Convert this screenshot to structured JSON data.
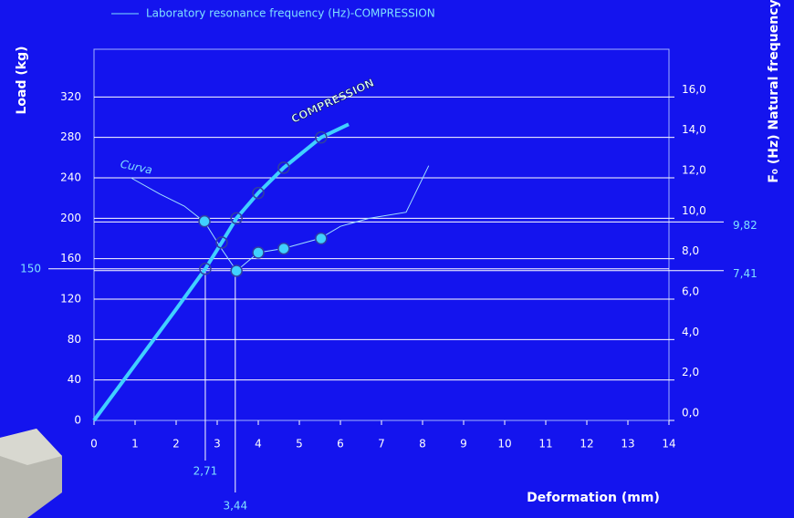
{
  "chart_data": {
    "type": "line",
    "x_label": "Deformation (mm)",
    "y_label": "Load (kg)",
    "y2_label": "F₀ (Hz) Natural frequency",
    "annotations": [
      "Curva",
      "COMPRESSION"
    ],
    "xlim": [
      0,
      14
    ],
    "xticks": [
      0,
      1,
      2,
      3,
      4,
      5,
      6,
      7,
      8,
      9,
      10,
      11,
      12,
      13,
      14
    ],
    "ylim": [
      0,
      360
    ],
    "yticks": [
      0,
      40,
      80,
      120,
      160,
      200,
      240,
      280,
      320
    ],
    "y2lim": [
      0,
      18
    ],
    "y2ticks": [
      {
        "value": 0,
        "label": "0,0"
      },
      {
        "value": 2,
        "label": "2,0"
      },
      {
        "value": 4,
        "label": "4,0"
      },
      {
        "value": 6,
        "label": "6,0"
      },
      {
        "value": 8,
        "label": "8,0"
      },
      {
        "value": 10,
        "label": "10,0"
      },
      {
        "value": 12,
        "label": "12,0"
      },
      {
        "value": 14,
        "label": "14,0"
      },
      {
        "value": 16,
        "label": "16,0"
      }
    ],
    "grid": true,
    "series": [
      {
        "name": "Laboratory resonance frequency (Hz)-COMPRESSION",
        "color": "#9fdfff",
        "axis": "y2",
        "style": "thin",
        "x": [
          0.9,
          1.6,
          2.2,
          2.7,
          3.1,
          3.47,
          4.0,
          4.6,
          5.5,
          6.0,
          6.7,
          7.6,
          8.15
        ],
        "values": [
          12.0,
          11.2,
          10.6,
          9.8,
          8.5,
          7.4,
          8.3,
          8.5,
          9.0,
          9.6,
          10.0,
          10.3,
          12.6
        ]
      },
      {
        "color": "#40d0ff",
        "axis": "y2",
        "style": "points",
        "x": [
          2.69,
          3.47,
          4.0,
          4.62,
          5.53
        ],
        "values": [
          9.85,
          7.4,
          8.3,
          8.5,
          9.0
        ]
      },
      {
        "color": "#40d0ff",
        "axis": "y",
        "style": "thick",
        "x": [
          0,
          1,
          2,
          2.71,
          3.11,
          3.47,
          4.0,
          4.62,
          5.53,
          6.2
        ],
        "values": [
          0,
          55,
          110,
          150,
          176,
          200,
          225,
          250,
          280,
          293
        ],
        "markers": [
          3,
          4,
          5,
          6,
          7,
          8
        ]
      }
    ],
    "guides": [
      {
        "label": "150",
        "value": 150,
        "axis": "y"
      },
      {
        "label": "9,82",
        "value": 9.82,
        "axis": "y2"
      },
      {
        "label": "7,41",
        "value": 7.41,
        "axis": "y2"
      },
      {
        "label": "2,71",
        "value": 2.71,
        "axis": "x"
      },
      {
        "label": "3,44",
        "value": 3.44,
        "axis": "x"
      }
    ]
  }
}
